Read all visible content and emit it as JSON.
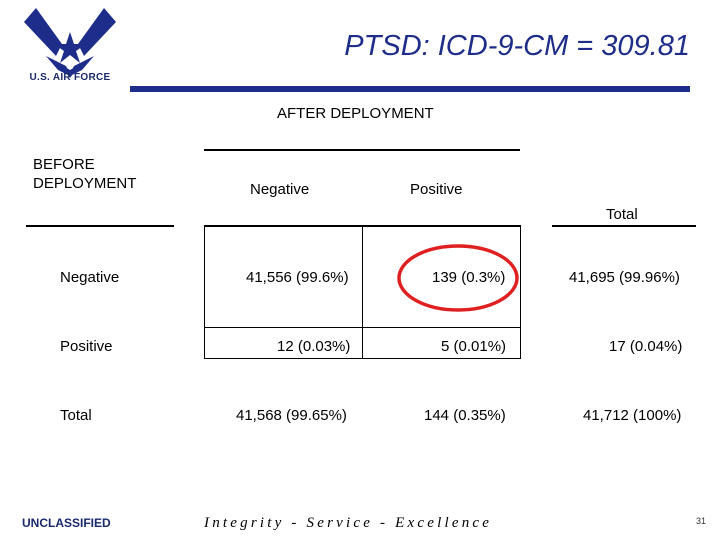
{
  "branding": {
    "org": "U.S. AIR FORCE",
    "colors": {
      "primary": "#1f2d8a",
      "circle": "#e02020"
    }
  },
  "header": {
    "title": "PTSD: ICD-9-CM = 309.81"
  },
  "table": {
    "column_group_label": "AFTER DEPLOYMENT",
    "row_group_label": "BEFORE DEPLOYMENT",
    "column_headers": [
      "Negative",
      "Positive"
    ],
    "total_header": "Total",
    "rows": [
      {
        "label": "Negative",
        "cells": [
          "41,556 (99.6%)",
          "139 (0.3%)"
        ],
        "total": "41,695 (99.96%)"
      },
      {
        "label": "Positive",
        "cells": [
          "12 (0.03%)",
          "5 (0.01%)"
        ],
        "total": "17 (0.04%)"
      },
      {
        "label": "Total",
        "cells": [
          "41,568 (99.65%)",
          "144 (0.35%)"
        ],
        "total": "41,712 (100%)"
      }
    ]
  },
  "footer": {
    "classification": "UNCLASSIFIED",
    "motto": "Integrity - Service - Excellence",
    "page_number": "31"
  }
}
